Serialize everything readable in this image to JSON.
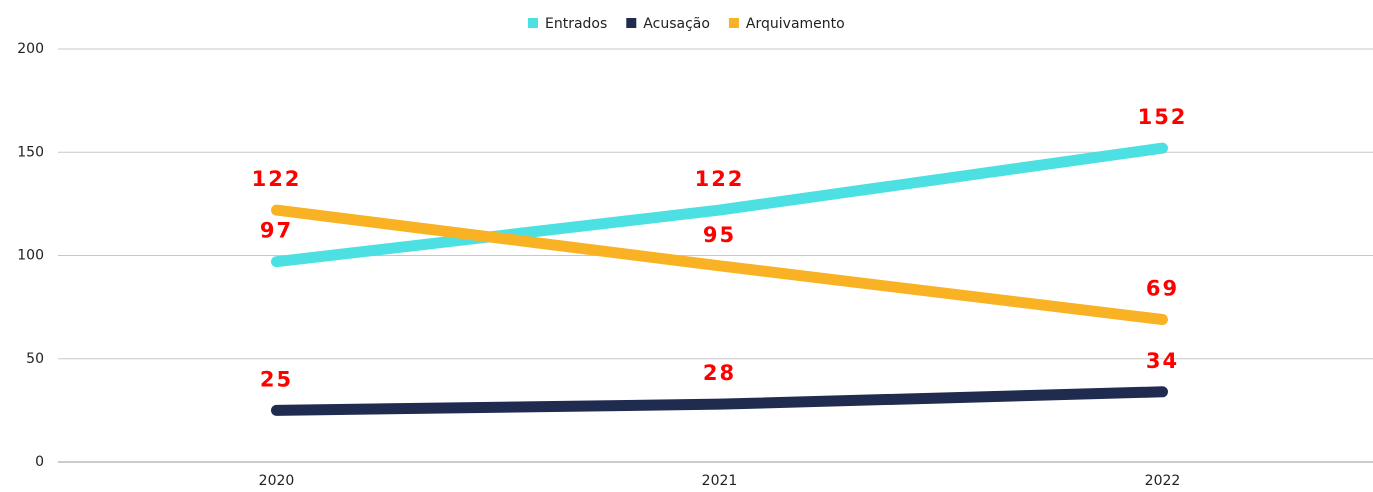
{
  "chart_data": {
    "type": "line",
    "categories": [
      "2020",
      "2021",
      "2022"
    ],
    "series": [
      {
        "name": "Entrados",
        "color": "#4de0e3",
        "values": [
          97,
          122,
          152
        ]
      },
      {
        "name": "Acusação",
        "color": "#1f2b4f",
        "values": [
          25,
          28,
          34
        ]
      },
      {
        "name": "Arquivamento",
        "color": "#f9b224",
        "values": [
          122,
          95,
          69
        ]
      }
    ],
    "ylim": [
      0,
      200
    ],
    "yticks": [
      0,
      50,
      100,
      150,
      200
    ],
    "grid": true,
    "legend": "top",
    "value_label_color": "#ff0000"
  }
}
